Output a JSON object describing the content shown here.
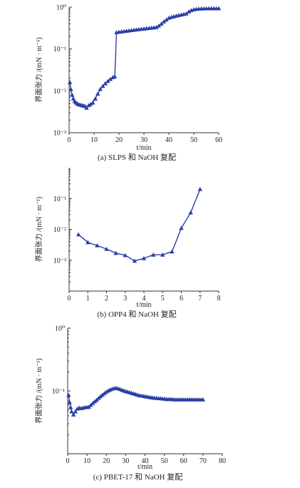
{
  "chart_data": [
    {
      "type": "line",
      "caption": "(a) SLPS 和 NaOH 复配",
      "xlabel": "t/min",
      "ylabel": "界面张力 /(mN · m⁻¹)",
      "xlim": [
        0,
        60
      ],
      "ylim": [
        0.001,
        1
      ],
      "yscale": "log",
      "xticks": [
        "0",
        "10",
        "20",
        "30",
        "40",
        "50",
        "60"
      ],
      "yticks": [
        "10⁻³",
        "10⁻²",
        "10⁻¹",
        "10⁰"
      ],
      "x": [
        0.3,
        0.7,
        1.2,
        1.7,
        2.2,
        2.8,
        3.4,
        4.0,
        4.6,
        5.2,
        5.8,
        6.4,
        7.0,
        7.8,
        8.6,
        9.5,
        10.5,
        11.5,
        12.5,
        13.5,
        14.5,
        15.5,
        16.5,
        17.5,
        18.3,
        19.0,
        20.0,
        21.0,
        22.0,
        23.0,
        24.0,
        25.0,
        26.0,
        27.0,
        28.0,
        29.0,
        30.0,
        31.0,
        32.0,
        33.0,
        34.0,
        35.0,
        36.0,
        37.0,
        38.0,
        39.0,
        40.0,
        41.0,
        42.0,
        43.0,
        44.0,
        45.0,
        46.0,
        47.0,
        48.0,
        49.0,
        50.0,
        51.0,
        52.0,
        53.0,
        54.0,
        55.0,
        56.0,
        57.0,
        58.0,
        59.0,
        60.0
      ],
      "y": [
        0.016,
        0.011,
        0.008,
        0.0065,
        0.0056,
        0.0052,
        0.0049,
        0.0047,
        0.0046,
        0.0045,
        0.0044,
        0.0043,
        0.0039,
        0.0045,
        0.0048,
        0.0052,
        0.0065,
        0.0085,
        0.011,
        0.013,
        0.015,
        0.017,
        0.019,
        0.021,
        0.022,
        0.25,
        0.255,
        0.26,
        0.265,
        0.27,
        0.275,
        0.28,
        0.285,
        0.29,
        0.295,
        0.3,
        0.305,
        0.31,
        0.315,
        0.32,
        0.325,
        0.33,
        0.36,
        0.4,
        0.45,
        0.5,
        0.55,
        0.58,
        0.6,
        0.62,
        0.64,
        0.66,
        0.68,
        0.7,
        0.78,
        0.84,
        0.88,
        0.9,
        0.91,
        0.92,
        0.92,
        0.93,
        0.93,
        0.93,
        0.93,
        0.93,
        0.93
      ]
    },
    {
      "type": "line",
      "caption": "(b) OPP4 和 NaOH 复配",
      "xlabel": "t/min",
      "ylabel": "界面张力 /(mN · m⁻¹)",
      "xlim": [
        0,
        8
      ],
      "ylim": [
        0.0001,
        1
      ],
      "yscale": "log",
      "xticks": [
        "0",
        "1",
        "2",
        "3",
        "4",
        "5",
        "6",
        "7",
        "8"
      ],
      "yticks": [
        "10⁻³",
        "10⁻²",
        "10⁻¹"
      ],
      "x": [
        0.5,
        1.0,
        1.5,
        2.0,
        2.5,
        3.0,
        3.5,
        4.0,
        4.5,
        5.0,
        5.5,
        6.0,
        6.5,
        7.0
      ],
      "y": [
        0.0068,
        0.0038,
        0.003,
        0.0023,
        0.0017,
        0.00145,
        0.00095,
        0.00115,
        0.0015,
        0.0015,
        0.0019,
        0.011,
        0.035,
        0.2
      ]
    },
    {
      "type": "line",
      "caption": "(c) PBET-17 和 NaOH 复配",
      "xlabel": "t/min",
      "ylabel": "界面张力 /(mN · m⁻¹)",
      "xlim": [
        0,
        80
      ],
      "ylim": [
        0.01,
        1
      ],
      "yscale": "log",
      "xticks": [
        "0",
        "10",
        "20",
        "30",
        "40",
        "50",
        "60",
        "70",
        "80"
      ],
      "yticks": [
        "10⁻¹",
        "10⁰"
      ],
      "x": [
        0.5,
        1.0,
        1.5,
        2.0,
        3.0,
        4.0,
        5.0,
        6.0,
        7.0,
        8.0,
        9.0,
        10.0,
        11.0,
        12.0,
        13.0,
        14.0,
        15.0,
        16.0,
        17.0,
        18.0,
        19.0,
        20.0,
        21.0,
        22.0,
        23.0,
        24.0,
        25.0,
        26.0,
        27.0,
        28.0,
        29.0,
        30.0,
        31.0,
        32.0,
        33.0,
        34.0,
        35.0,
        36.0,
        37.0,
        38.0,
        39.0,
        40.0,
        41.0,
        42.0,
        43.0,
        44.0,
        45.0,
        46.0,
        47.0,
        48.0,
        49.0,
        50.0,
        51.0,
        52.0,
        53.0,
        54.0,
        55.0,
        56.0,
        57.0,
        58.0,
        59.0,
        60.0,
        61.0,
        62.0,
        63.0,
        64.0,
        65.0,
        66.0,
        67.0,
        68.0,
        69.0,
        70.0
      ],
      "y": [
        0.086,
        0.066,
        0.055,
        0.047,
        0.042,
        0.047,
        0.052,
        0.054,
        0.053,
        0.054,
        0.055,
        0.055,
        0.056,
        0.06,
        0.064,
        0.068,
        0.072,
        0.077,
        0.082,
        0.087,
        0.092,
        0.097,
        0.101,
        0.105,
        0.108,
        0.11,
        0.111,
        0.11,
        0.107,
        0.104,
        0.101,
        0.099,
        0.097,
        0.095,
        0.093,
        0.091,
        0.089,
        0.087,
        0.085,
        0.084,
        0.083,
        0.082,
        0.081,
        0.08,
        0.079,
        0.078,
        0.077,
        0.077,
        0.076,
        0.076,
        0.075,
        0.075,
        0.074,
        0.074,
        0.074,
        0.074,
        0.073,
        0.073,
        0.073,
        0.073,
        0.073,
        0.073,
        0.073,
        0.073,
        0.073,
        0.073,
        0.073,
        0.073,
        0.073,
        0.073,
        0.073,
        0.073
      ]
    }
  ]
}
